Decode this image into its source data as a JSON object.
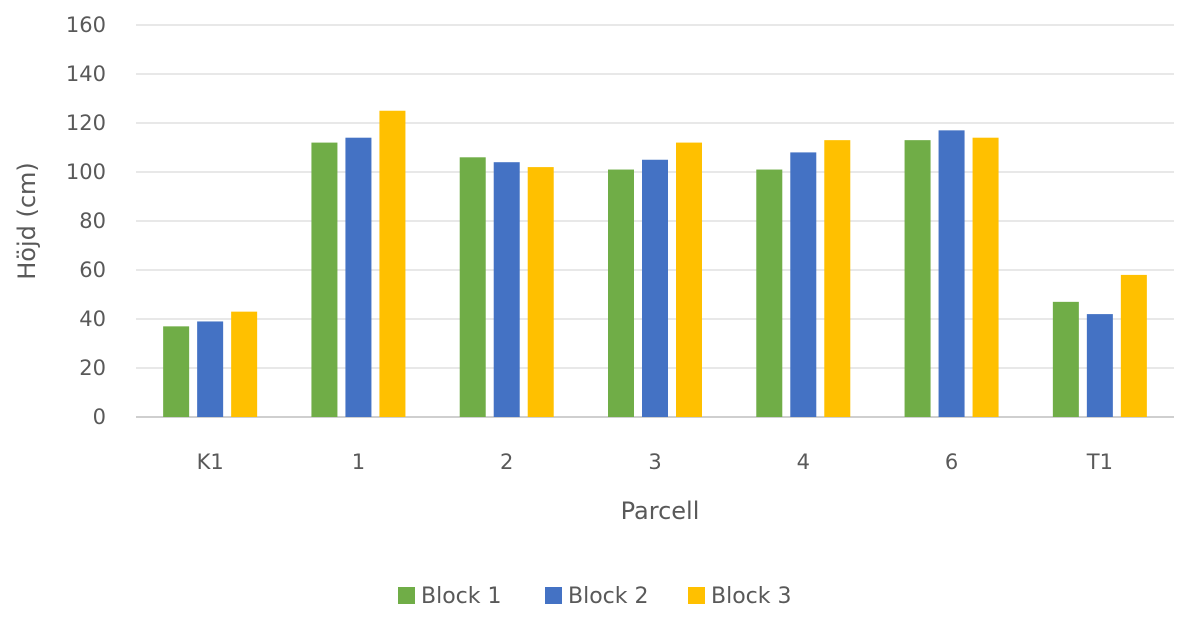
{
  "chart_data": {
    "type": "bar",
    "title": "",
    "xlabel": "Parcell",
    "ylabel": "Höjd (cm)",
    "ylim": [
      0,
      160
    ],
    "yticks": [
      0,
      20,
      40,
      60,
      80,
      100,
      120,
      140,
      160
    ],
    "grid": true,
    "legend_position": "bottom",
    "categories": [
      "K1",
      "1",
      "2",
      "3",
      "4",
      "6",
      "T1"
    ],
    "series": [
      {
        "name": "Block 1",
        "color": "#70ad47",
        "values": [
          37,
          112,
          106,
          101,
          101,
          113,
          47
        ]
      },
      {
        "name": "Block 2",
        "color": "#4472c4",
        "values": [
          39,
          114,
          104,
          105,
          108,
          117,
          42
        ]
      },
      {
        "name": "Block 3",
        "color": "#ffc000",
        "values": [
          43,
          125,
          102,
          112,
          113,
          114,
          58
        ]
      }
    ]
  }
}
